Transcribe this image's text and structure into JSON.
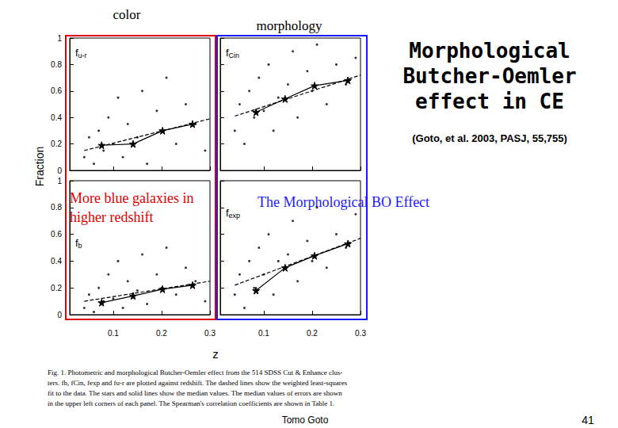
{
  "slide": {
    "left_heading": "color",
    "right_heading": "morphology",
    "title_lines": [
      "Morphological",
      "Butcher-Oemler",
      "effect in CE"
    ],
    "reference": "(Goto, et al. 2003, PASJ, 55,755)",
    "left_note_lines": [
      "More blue galaxies in",
      "higher redshift"
    ],
    "right_note": "The Morphological BO Effect",
    "xlabel": "z",
    "ylabel": "Fraction",
    "caption_lines": [
      "Fig. 1. Photometric and morphological Butcher-Oemler effect from the 514 SDSS Cut & Enhance clus-",
      "ters. fb, fCin, fexp and fu-r are plotted against redshift. The dashed lines show the weighted least-squares",
      "fit to the data. The stars and solid lines show the median values. The median values of errors are shown",
      "in the upper left corners of each panel. The Spearman's correlation coefficients are shown in Table 1."
    ],
    "author": "Tomo Goto",
    "page": "41"
  },
  "chart_data": [
    {
      "type": "scatter",
      "label": "f",
      "label_sub": "u-r",
      "xlim": [
        0.01,
        0.3
      ],
      "xticks": [
        0.1,
        0.2,
        0.3
      ],
      "ylim": [
        0,
        1
      ],
      "yticks": [
        0,
        0.2,
        0.4,
        0.6,
        0.8,
        1
      ],
      "tick_labels": "y",
      "grid": false,
      "series": [
        {
          "type": "scatter",
          "marker": "circle",
          "color": "#000000",
          "x": [
            0.04,
            0.05,
            0.06,
            0.07,
            0.08,
            0.09,
            0.1,
            0.11,
            0.12,
            0.13,
            0.15,
            0.16,
            0.17,
            0.19,
            0.2,
            0.21,
            0.23,
            0.25,
            0.27,
            0.29
          ],
          "values": [
            0.1,
            0.25,
            0.05,
            0.3,
            0.15,
            0.4,
            0.2,
            0.55,
            0.1,
            0.35,
            0.25,
            0.6,
            0.05,
            0.45,
            0.3,
            0.7,
            0.2,
            0.5,
            0.35,
            0.15
          ]
        },
        {
          "type": "line",
          "marker": "star",
          "line_style": "solid",
          "color": "#000000",
          "x": [
            0.076,
            0.141,
            0.202,
            0.264
          ],
          "values": [
            0.19,
            0.2,
            0.3,
            0.35
          ]
        },
        {
          "type": "line",
          "marker": "none",
          "line_style": "dashed",
          "color": "#000000",
          "x": [
            0.04,
            0.3
          ],
          "values": [
            0.15,
            0.39
          ]
        }
      ]
    },
    {
      "type": "scatter",
      "label": "f",
      "label_sub": "Cin",
      "xlim": [
        0.01,
        0.3
      ],
      "xticks": [
        0.1,
        0.2,
        0.3
      ],
      "ylim": [
        0,
        1
      ],
      "yticks": [
        0,
        0.2,
        0.4,
        0.6,
        0.8,
        1
      ],
      "tick_labels": false,
      "grid": false,
      "series": [
        {
          "type": "scatter",
          "marker": "circle",
          "color": "#000000",
          "x": [
            0.04,
            0.05,
            0.06,
            0.07,
            0.08,
            0.09,
            0.1,
            0.11,
            0.12,
            0.13,
            0.15,
            0.16,
            0.17,
            0.19,
            0.2,
            0.21,
            0.23,
            0.25,
            0.27,
            0.29
          ],
          "values": [
            0.3,
            0.5,
            0.2,
            0.6,
            0.4,
            0.7,
            0.45,
            0.8,
            0.3,
            0.55,
            0.65,
            0.9,
            0.4,
            0.75,
            0.6,
            0.95,
            0.5,
            0.8,
            0.65,
            0.85
          ]
        },
        {
          "type": "line",
          "marker": "star",
          "line_style": "solid",
          "color": "#000000",
          "x": [
            0.084,
            0.144,
            0.205,
            0.274
          ],
          "values": [
            0.44,
            0.54,
            0.64,
            0.68
          ]
        },
        {
          "type": "line",
          "marker": "none",
          "line_style": "dashed",
          "color": "#000000",
          "x": [
            0.04,
            0.3
          ],
          "values": [
            0.41,
            0.72
          ]
        }
      ]
    },
    {
      "type": "scatter",
      "label": "f",
      "label_sub": "b",
      "xlim": [
        0.01,
        0.3
      ],
      "xticks": [
        0.1,
        0.2,
        0.3
      ],
      "ylim": [
        0,
        1
      ],
      "yticks": [
        0,
        0.2,
        0.4,
        0.6,
        0.8,
        1
      ],
      "tick_labels": true,
      "grid": false,
      "series": [
        {
          "type": "scatter",
          "marker": "circle",
          "color": "#000000",
          "x": [
            0.04,
            0.05,
            0.06,
            0.07,
            0.08,
            0.09,
            0.1,
            0.11,
            0.12,
            0.13,
            0.15,
            0.16,
            0.17,
            0.19,
            0.2,
            0.21,
            0.23,
            0.25,
            0.27,
            0.29
          ],
          "values": [
            0.05,
            0.15,
            0.02,
            0.2,
            0.1,
            0.3,
            0.12,
            0.4,
            0.05,
            0.25,
            0.18,
            0.45,
            0.08,
            0.3,
            0.2,
            0.5,
            0.15,
            0.35,
            0.25,
            0.1
          ]
        },
        {
          "type": "line",
          "marker": "star",
          "line_style": "solid",
          "color": "#000000",
          "x": [
            0.076,
            0.141,
            0.202,
            0.264
          ],
          "values": [
            0.09,
            0.14,
            0.19,
            0.22
          ]
        },
        {
          "type": "line",
          "marker": "none",
          "line_style": "dashed",
          "color": "#000000",
          "x": [
            0.04,
            0.3
          ],
          "values": [
            0.1,
            0.25
          ]
        }
      ]
    },
    {
      "type": "scatter",
      "label": "f",
      "label_sub": "exp",
      "xlim": [
        0.01,
        0.3
      ],
      "xticks": [
        0.1,
        0.2,
        0.3
      ],
      "ylim": [
        0,
        1
      ],
      "yticks": [
        0,
        0.2,
        0.4,
        0.6,
        0.8,
        1
      ],
      "tick_labels": "x",
      "grid": false,
      "series": [
        {
          "type": "scatter",
          "marker": "circle",
          "color": "#000000",
          "x": [
            0.04,
            0.05,
            0.06,
            0.07,
            0.08,
            0.09,
            0.1,
            0.11,
            0.12,
            0.13,
            0.15,
            0.16,
            0.17,
            0.19,
            0.2,
            0.21,
            0.23,
            0.25,
            0.27,
            0.29
          ],
          "values": [
            0.15,
            0.3,
            0.05,
            0.4,
            0.2,
            0.5,
            0.3,
            0.6,
            0.15,
            0.4,
            0.45,
            0.7,
            0.25,
            0.55,
            0.4,
            0.8,
            0.35,
            0.6,
            0.5,
            0.75
          ]
        },
        {
          "type": "line",
          "marker": "star",
          "line_style": "solid",
          "color": "#000000",
          "x": [
            0.084,
            0.144,
            0.205,
            0.274
          ],
          "values": [
            0.18,
            0.35,
            0.44,
            0.53
          ]
        },
        {
          "type": "line",
          "marker": "none",
          "line_style": "dashed",
          "color": "#000000",
          "x": [
            0.04,
            0.3
          ],
          "values": [
            0.22,
            0.57
          ]
        }
      ]
    }
  ]
}
